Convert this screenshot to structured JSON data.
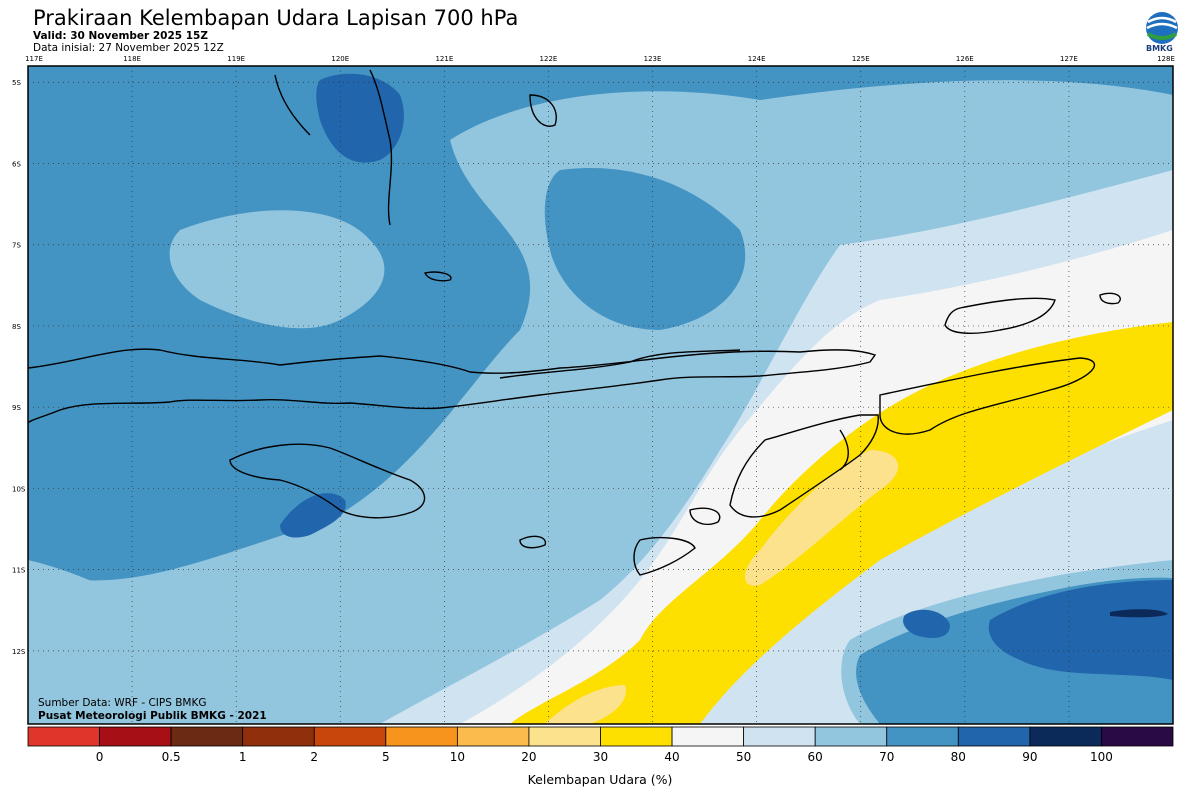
{
  "header": {
    "title": "Prakiraan Kelembapan Udara Lapisan 700 hPa",
    "valid": "Valid: 30 November 2025 15Z",
    "initial": "Data inisial: 27 November 2025 12Z"
  },
  "logo": {
    "label": "BMKG"
  },
  "map": {
    "lon_labels": [
      "117E",
      "118E",
      "119E",
      "120E",
      "121E",
      "122E",
      "123E",
      "124E",
      "125E",
      "126E",
      "127E",
      "128E"
    ],
    "lat_labels": [
      "5S",
      "6S",
      "7S",
      "8S",
      "9S",
      "10S",
      "11S",
      "12S"
    ],
    "lon_range": [
      117,
      128
    ],
    "lat_range": [
      -4.8,
      -12.9
    ]
  },
  "credits": {
    "source": "Sumber Data: WRF - CIPS BMKG",
    "organization": "Pusat Meteorologi Publik BMKG - 2021"
  },
  "colorbar": {
    "title": "Kelembapan Udara (%)",
    "ticks": [
      "0",
      "0.5",
      "1",
      "2",
      "5",
      "10",
      "20",
      "30",
      "40",
      "50",
      "60",
      "70",
      "80",
      "90",
      "100"
    ],
    "colors": [
      "#e0352b",
      "#a50f15",
      "#6b2a12",
      "#8f2f0c",
      "#c8460c",
      "#f7941d",
      "#fbbc4d",
      "#fde28e",
      "#fddf00",
      "#f5f5f5",
      "#d0e3f0",
      "#92c5de",
      "#4393c3",
      "#2166ac",
      "#0b2a5a",
      "#2a0a45"
    ]
  },
  "fill_colors": {
    "c50": "#f5f5f5",
    "c60": "#d0e3f0",
    "c70": "#92c5de",
    "c80": "#4393c3",
    "c90": "#2166ac",
    "c100": "#0b2a5a",
    "c40": "#fddf00",
    "c30": "#fde28e"
  }
}
